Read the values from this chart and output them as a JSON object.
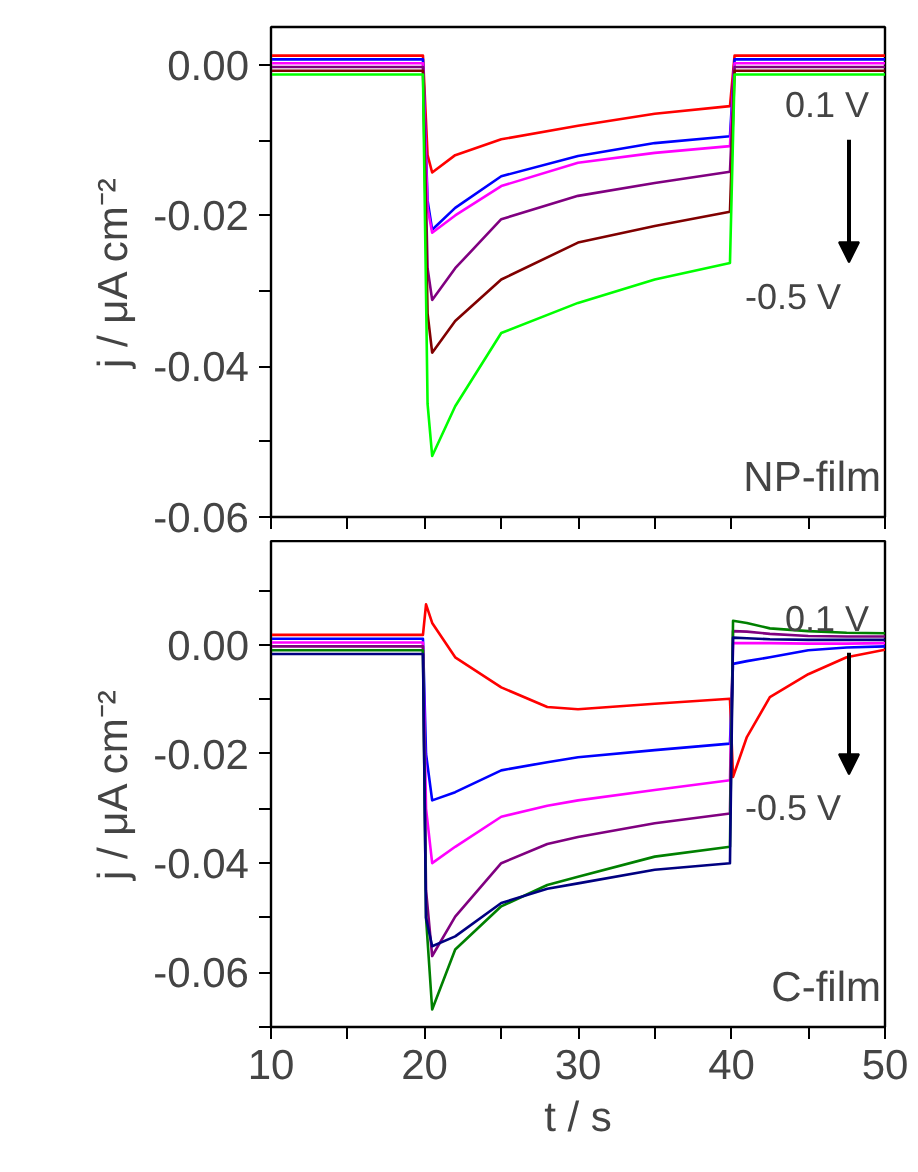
{
  "chart_data": [
    {
      "type": "line",
      "ylabel": "j / μA cm⁻²",
      "annotations": [
        "0.1 V",
        "-0.5 V",
        "NP-film"
      ],
      "xlim": [
        10,
        50
      ],
      "ylim": [
        -0.06,
        0.005
      ],
      "tick_labels": "y",
      "xticks": [
        {
          "value": 10,
          "label": null
        },
        {
          "value": 15,
          "label": null
        },
        {
          "value": 20,
          "label": null
        },
        {
          "value": 25,
          "label": null
        },
        {
          "value": 30,
          "label": null
        },
        {
          "value": 35,
          "label": null
        },
        {
          "value": 40,
          "label": null
        },
        {
          "value": 45,
          "label": null
        },
        {
          "value": 50,
          "label": null
        }
      ],
      "yticks": [
        {
          "value": -0.06,
          "label": "-0.06"
        },
        {
          "value": -0.05,
          "label": null
        },
        {
          "value": -0.04,
          "label": "-0.04"
        },
        {
          "value": -0.03,
          "label": null
        },
        {
          "value": -0.02,
          "label": "-0.02"
        },
        {
          "value": -0.01,
          "label": null
        },
        {
          "value": 0,
          "label": "0.00"
        }
      ],
      "grid": false,
      "line_style": "solid",
      "marker": "none",
      "x": [
        10,
        15,
        19.9,
        20.2,
        20.5,
        22,
        25,
        30,
        35,
        39.9,
        40.2,
        45,
        50
      ],
      "series": [
        {
          "color": "#ff0000",
          "values": [
            0.0012,
            0.0012,
            0.0012,
            -0.012,
            -0.0143,
            -0.012,
            -0.0099,
            -0.0081,
            -0.0065,
            -0.0055,
            0.0012,
            0.0012,
            0.0012
          ]
        },
        {
          "color": "#0000ff",
          "values": [
            0.0007,
            0.0007,
            0.0007,
            -0.018,
            -0.0219,
            -0.019,
            -0.0148,
            -0.0121,
            -0.0104,
            -0.0095,
            0.0007,
            0.0007,
            0.0007
          ]
        },
        {
          "color": "#ff00ff",
          "values": [
            0.0002,
            0.0002,
            0.0002,
            -0.019,
            -0.0223,
            -0.02,
            -0.0161,
            -0.013,
            -0.0117,
            -0.0108,
            0.0002,
            0.0002,
            0.0002
          ]
        },
        {
          "color": "#800080",
          "values": [
            -0.0003,
            -0.0003,
            -0.0003,
            -0.027,
            -0.0312,
            -0.027,
            -0.0205,
            -0.0174,
            -0.0157,
            -0.0142,
            -0.0003,
            -0.0003,
            -0.0003
          ]
        },
        {
          "color": "#800000",
          "values": [
            -0.0008,
            -0.0008,
            -0.0008,
            -0.033,
            -0.0382,
            -0.034,
            -0.0285,
            -0.0236,
            -0.0214,
            -0.0195,
            -0.0008,
            -0.0008,
            -0.0008
          ]
        },
        {
          "color": "#00ff00",
          "values": [
            -0.0013,
            -0.0013,
            -0.0013,
            -0.045,
            -0.0519,
            -0.0453,
            -0.0356,
            -0.0316,
            -0.0285,
            -0.0263,
            -0.0013,
            -0.0013,
            -0.0013
          ]
        }
      ]
    },
    {
      "type": "line",
      "xlabel": "t / s",
      "ylabel": "j / μA cm⁻²",
      "annotations": [
        "0.1 V",
        "-0.5 V",
        "C-film"
      ],
      "xlim": [
        10,
        50
      ],
      "ylim": [
        -0.07,
        0.019
      ],
      "xticks": [
        {
          "value": 10,
          "label": "10"
        },
        {
          "value": 15,
          "label": null
        },
        {
          "value": 20,
          "label": "20"
        },
        {
          "value": 25,
          "label": null
        },
        {
          "value": 30,
          "label": "30"
        },
        {
          "value": 35,
          "label": null
        },
        {
          "value": 40,
          "label": "40"
        },
        {
          "value": 45,
          "label": null
        },
        {
          "value": 50,
          "label": "50"
        }
      ],
      "yticks": [
        {
          "value": -0.07,
          "label": null
        },
        {
          "value": -0.06,
          "label": "-0.06"
        },
        {
          "value": -0.05,
          "label": null
        },
        {
          "value": -0.04,
          "label": "-0.04"
        },
        {
          "value": -0.03,
          "label": null
        },
        {
          "value": -0.02,
          "label": "-0.02"
        },
        {
          "value": -0.01,
          "label": null
        },
        {
          "value": 0,
          "label": "0.00"
        },
        {
          "value": 0.01,
          "label": null
        }
      ],
      "grid": false,
      "line_style": "solid",
      "marker": "none",
      "x": [
        10,
        15,
        19.9,
        20.1,
        20.5,
        22,
        25,
        28,
        30,
        35,
        39.9,
        40.1,
        41,
        42.5,
        45,
        47.5,
        50
      ],
      "series": [
        {
          "color": "#ff0000",
          "values": [
            0.0018,
            0.0018,
            0.0018,
            0.0074,
            0.004,
            -0.0023,
            -0.0078,
            -0.0114,
            -0.0118,
            -0.0108,
            -0.0099,
            -0.0242,
            -0.0169,
            -0.0096,
            -0.0054,
            -0.0023,
            -0.0009
          ]
        },
        {
          "color": "#0000ff",
          "values": [
            0.0011,
            0.0011,
            0.0011,
            -0.02,
            -0.0285,
            -0.027,
            -0.023,
            -0.0215,
            -0.0206,
            -0.0193,
            -0.0181,
            -0.0035,
            -0.003,
            -0.0023,
            -0.001,
            -0.0005,
            -0.0003
          ]
        },
        {
          "color": "#ff00ff",
          "values": [
            0.0004,
            0.0004,
            0.0004,
            -0.03,
            -0.04,
            -0.037,
            -0.0315,
            -0.0295,
            -0.0285,
            -0.0266,
            -0.0248,
            0.0003,
            0.0003,
            0.0003,
            0.0002,
            0.0002,
            0.0003
          ]
        },
        {
          "color": "#800080",
          "values": [
            -0.0003,
            -0.0003,
            -0.0003,
            -0.045,
            -0.057,
            -0.0498,
            -0.04,
            -0.0365,
            -0.0352,
            -0.0327,
            -0.0309,
            0.0025,
            0.0024,
            0.002,
            0.0016,
            0.0015,
            0.0015
          ]
        },
        {
          "color": "#008000",
          "values": [
            -0.001,
            -0.001,
            -0.001,
            -0.05,
            -0.0668,
            -0.0558,
            -0.0479,
            -0.044,
            -0.0425,
            -0.0388,
            -0.037,
            0.0044,
            0.004,
            0.003,
            0.0025,
            0.0022,
            0.0021
          ]
        },
        {
          "color": "#000080",
          "values": [
            -0.0017,
            -0.0017,
            -0.0017,
            -0.05,
            -0.0552,
            -0.0534,
            -0.0473,
            -0.0447,
            -0.0437,
            -0.0412,
            -0.04,
            0.0013,
            0.0012,
            0.001,
            0.0009,
            0.0009,
            0.0009
          ]
        }
      ]
    }
  ]
}
